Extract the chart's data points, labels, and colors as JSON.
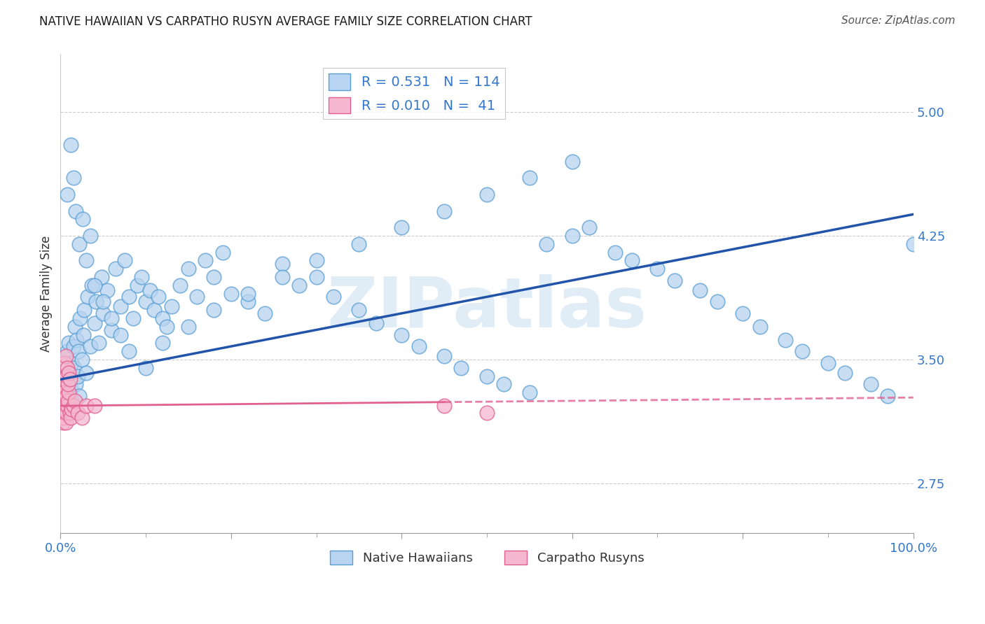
{
  "title": "NATIVE HAWAIIAN VS CARPATHO RUSYN AVERAGE FAMILY SIZE CORRELATION CHART",
  "source": "Source: ZipAtlas.com",
  "ylabel": "Average Family Size",
  "xlim": [
    0.0,
    1.0
  ],
  "ylim": [
    2.45,
    5.35
  ],
  "yticks": [
    2.75,
    3.5,
    4.25,
    5.0
  ],
  "ytick_labels": [
    "2.75",
    "3.50",
    "4.25",
    "5.00"
  ],
  "blue_color": "#b8d4f0",
  "blue_edge": "#5a9fd4",
  "pink_color": "#f5b8ce",
  "pink_edge": "#e06090",
  "line_blue": "#2255aa",
  "line_pink": "#e06090",
  "R_blue": 0.531,
  "N_blue": 114,
  "R_pink": 0.01,
  "N_pink": 41,
  "legend_label_blue": "Native Hawaiians",
  "legend_label_pink": "Carpatho Rusyns",
  "watermark": "ZIPatlas",
  "title_color": "#1a1a1a",
  "source_color": "#555555",
  "tick_color": "#3377cc",
  "ylabel_color": "#333333",
  "grid_color": "#cccccc",
  "background": "#ffffff",
  "blue_intercept": 3.38,
  "blue_slope": 1.0,
  "pink_intercept": 3.22,
  "pink_slope": 0.05,
  "blue_x": [
    0.005,
    0.006,
    0.007,
    0.008,
    0.008,
    0.009,
    0.01,
    0.01,
    0.012,
    0.013,
    0.014,
    0.015,
    0.016,
    0.017,
    0.018,
    0.019,
    0.02,
    0.021,
    0.022,
    0.023,
    0.025,
    0.027,
    0.028,
    0.03,
    0.032,
    0.035,
    0.037,
    0.04,
    0.042,
    0.045,
    0.048,
    0.05,
    0.055,
    0.06,
    0.065,
    0.07,
    0.075,
    0.08,
    0.085,
    0.09,
    0.095,
    0.1,
    0.105,
    0.11,
    0.115,
    0.12,
    0.125,
    0.13,
    0.14,
    0.15,
    0.16,
    0.17,
    0.18,
    0.19,
    0.2,
    0.22,
    0.24,
    0.26,
    0.28,
    0.3,
    0.32,
    0.35,
    0.37,
    0.4,
    0.42,
    0.45,
    0.47,
    0.5,
    0.52,
    0.55,
    0.57,
    0.6,
    0.62,
    0.65,
    0.67,
    0.7,
    0.72,
    0.75,
    0.77,
    0.8,
    0.82,
    0.85,
    0.87,
    0.9,
    0.92,
    0.95,
    0.97,
    1.0,
    0.008,
    0.012,
    0.015,
    0.018,
    0.022,
    0.026,
    0.03,
    0.035,
    0.04,
    0.05,
    0.06,
    0.07,
    0.08,
    0.1,
    0.12,
    0.15,
    0.18,
    0.22,
    0.26,
    0.3,
    0.35,
    0.4,
    0.45,
    0.5,
    0.55,
    0.6
  ],
  "blue_y": [
    3.4,
    3.35,
    3.3,
    3.28,
    3.55,
    3.42,
    3.38,
    3.6,
    3.32,
    3.48,
    3.25,
    3.58,
    3.45,
    3.7,
    3.35,
    3.62,
    3.4,
    3.55,
    3.28,
    3.75,
    3.5,
    3.65,
    3.8,
    3.42,
    3.88,
    3.58,
    3.95,
    3.72,
    3.85,
    3.6,
    4.0,
    3.78,
    3.92,
    3.68,
    4.05,
    3.82,
    4.1,
    3.88,
    3.75,
    3.95,
    4.0,
    3.85,
    3.92,
    3.8,
    3.88,
    3.75,
    3.7,
    3.82,
    3.95,
    4.05,
    3.88,
    4.1,
    4.0,
    4.15,
    3.9,
    3.85,
    3.78,
    4.08,
    3.95,
    4.0,
    3.88,
    3.8,
    3.72,
    3.65,
    3.58,
    3.52,
    3.45,
    3.4,
    3.35,
    3.3,
    4.2,
    4.25,
    4.3,
    4.15,
    4.1,
    4.05,
    3.98,
    3.92,
    3.85,
    3.78,
    3.7,
    3.62,
    3.55,
    3.48,
    3.42,
    3.35,
    3.28,
    4.2,
    4.5,
    4.8,
    4.6,
    4.4,
    4.2,
    4.35,
    4.1,
    4.25,
    3.95,
    3.85,
    3.75,
    3.65,
    3.55,
    3.45,
    3.6,
    3.7,
    3.8,
    3.9,
    4.0,
    4.1,
    4.2,
    4.3,
    4.4,
    4.5,
    4.6,
    4.7
  ],
  "pink_x": [
    0.001,
    0.001,
    0.001,
    0.002,
    0.002,
    0.002,
    0.002,
    0.003,
    0.003,
    0.003,
    0.003,
    0.004,
    0.004,
    0.004,
    0.005,
    0.005,
    0.006,
    0.006,
    0.007,
    0.007,
    0.008,
    0.009,
    0.01,
    0.011,
    0.012,
    0.013,
    0.015,
    0.017,
    0.02,
    0.025,
    0.03,
    0.04,
    0.005,
    0.006,
    0.007,
    0.008,
    0.009,
    0.01,
    0.011,
    0.45,
    0.5
  ],
  "pink_y": [
    3.22,
    3.3,
    3.18,
    3.25,
    3.32,
    3.15,
    3.35,
    3.2,
    3.28,
    3.12,
    3.38,
    3.22,
    3.15,
    3.3,
    3.18,
    3.26,
    3.12,
    3.22,
    3.18,
    3.28,
    3.22,
    3.25,
    3.3,
    3.18,
    3.15,
    3.2,
    3.22,
    3.25,
    3.18,
    3.15,
    3.22,
    3.22,
    3.48,
    3.52,
    3.4,
    3.45,
    3.35,
    3.42,
    3.38,
    3.22,
    3.18
  ]
}
